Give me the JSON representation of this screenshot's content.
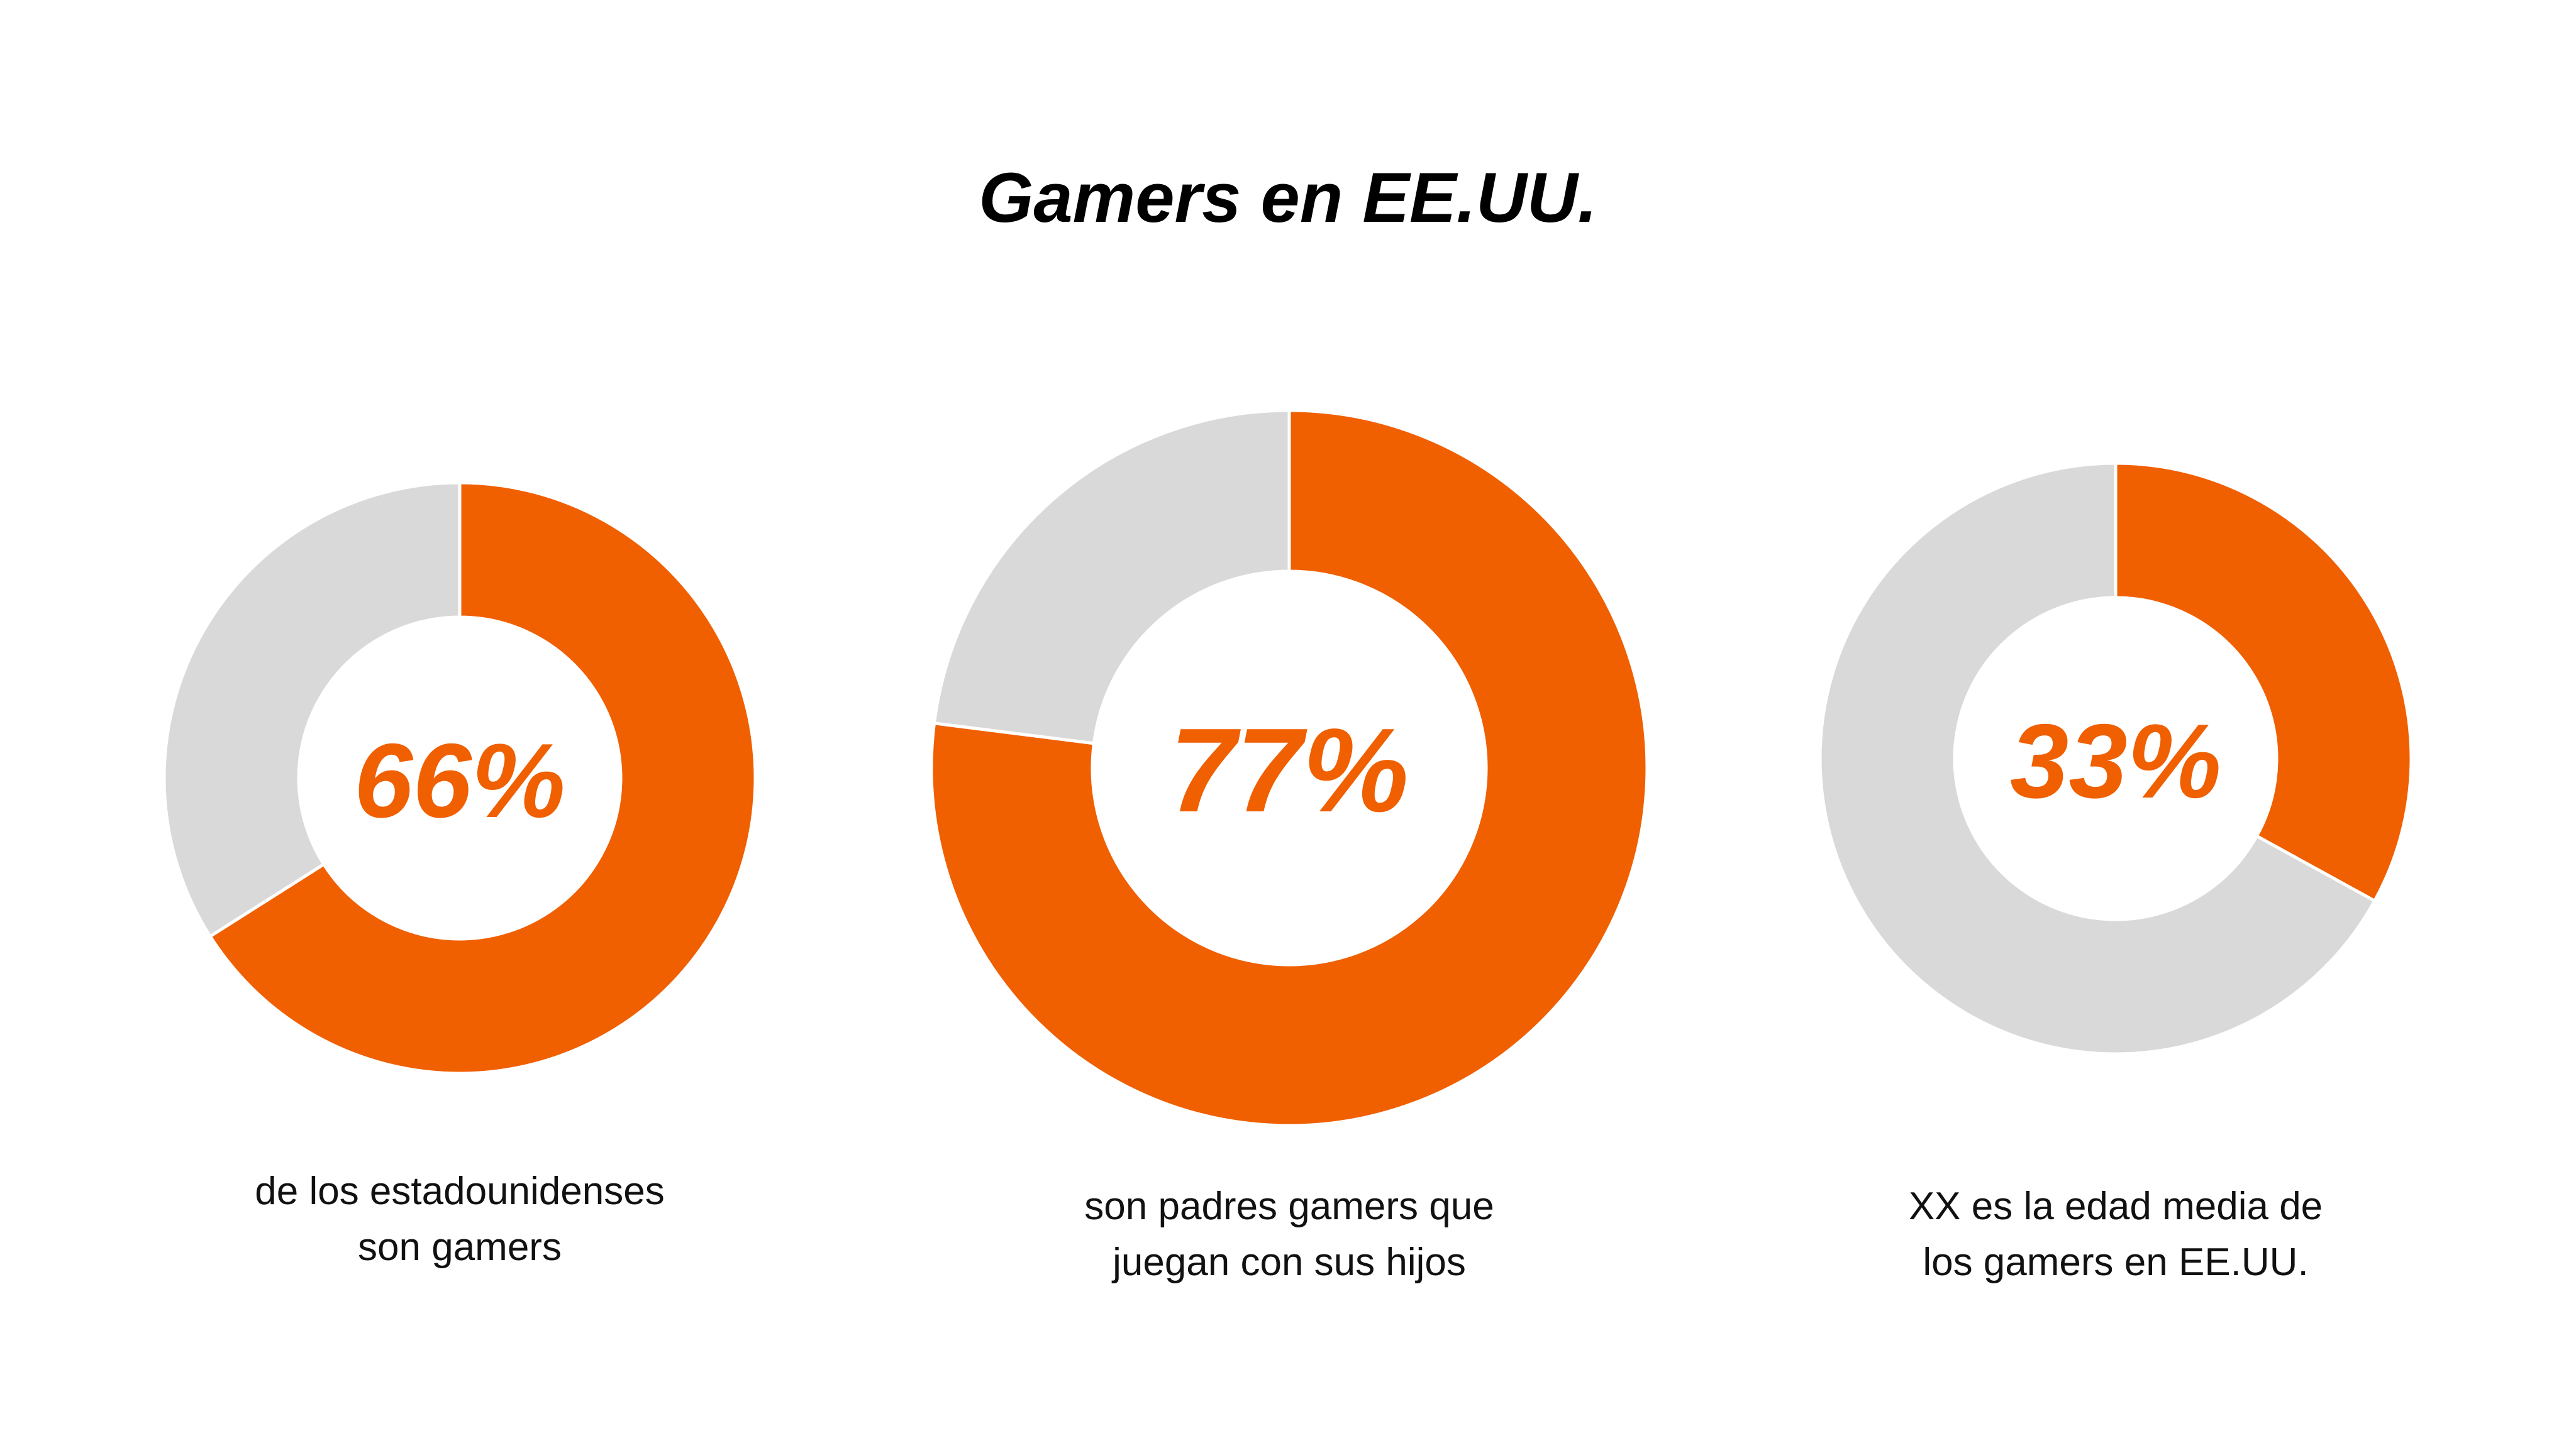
{
  "title": "Gamers en EE.UU.",
  "colors": {
    "accent": "#F05F00",
    "remainder": "#D9D9D9"
  },
  "chart_data": [
    {
      "type": "pie",
      "donut": true,
      "value": 66,
      "label": "66%",
      "caption_lines": [
        "de los estadounidenses",
        "son gamers"
      ]
    },
    {
      "type": "pie",
      "donut": true,
      "value": 77,
      "label": "77%",
      "caption_lines": [
        "son padres gamers que",
        "juegan con sus hijos"
      ]
    },
    {
      "type": "pie",
      "donut": true,
      "value": 33,
      "label": "33%",
      "caption_lines": [
        "XX es la edad media de",
        "los gamers en EE.UU."
      ]
    }
  ]
}
